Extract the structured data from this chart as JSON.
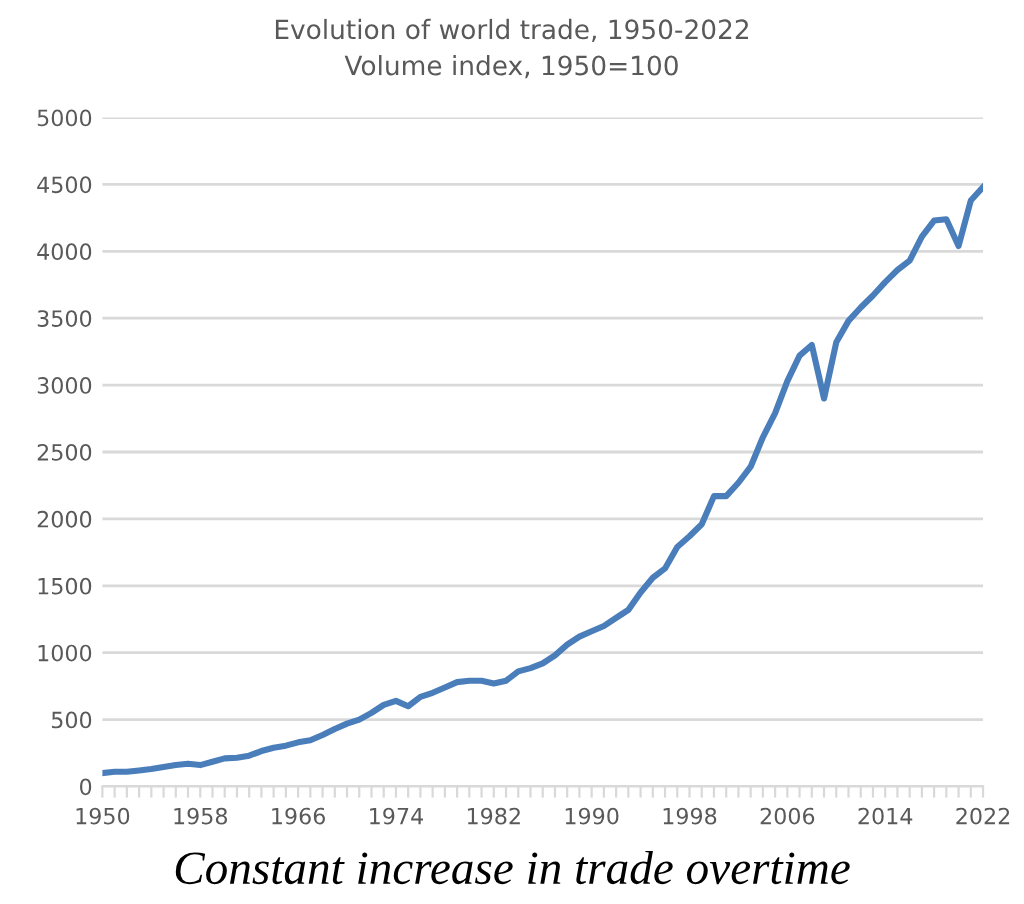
{
  "chart_data": {
    "type": "line",
    "title": "Evolution of world trade, 1950-2022",
    "subtitle": "Volume index, 1950=100",
    "annotations": [
      "Constant increase in trade overtime"
    ],
    "x": [
      1950,
      1951,
      1952,
      1953,
      1954,
      1955,
      1956,
      1957,
      1958,
      1959,
      1960,
      1961,
      1962,
      1963,
      1964,
      1965,
      1966,
      1967,
      1968,
      1969,
      1970,
      1971,
      1972,
      1973,
      1974,
      1975,
      1976,
      1977,
      1978,
      1979,
      1980,
      1981,
      1982,
      1983,
      1984,
      1985,
      1986,
      1987,
      1988,
      1989,
      1990,
      1991,
      1992,
      1993,
      1994,
      1995,
      1996,
      1997,
      1998,
      1999,
      2000,
      2001,
      2002,
      2003,
      2004,
      2005,
      2006,
      2007,
      2008,
      2009,
      2010,
      2011,
      2012,
      2013,
      2014,
      2015,
      2016,
      2017,
      2018,
      2019,
      2020,
      2021,
      2022
    ],
    "series": [
      {
        "color": "#4a7ebb",
        "values": [
          100,
          110,
          110,
          120,
          130,
          145,
          160,
          170,
          160,
          185,
          210,
          215,
          230,
          265,
          290,
          305,
          330,
          345,
          385,
          430,
          470,
          500,
          550,
          610,
          640,
          600,
          670,
          700,
          740,
          780,
          790,
          790,
          770,
          790,
          860,
          885,
          920,
          980,
          1060,
          1120,
          1160,
          1200,
          1260,
          1320,
          1450,
          1560,
          1630,
          1790,
          1870,
          1960,
          2170,
          2170,
          2270,
          2390,
          2610,
          2790,
          3030,
          3220,
          3300,
          2900,
          3320,
          3480,
          3580,
          3670,
          3770,
          3860,
          3930,
          4110,
          4230,
          4240,
          4040,
          4380,
          4480
        ]
      }
    ],
    "xlim": [
      1950,
      2022
    ],
    "xticks": [
      1950,
      {
        "value": 1951,
        "label": null
      },
      {
        "value": 1952,
        "label": null
      },
      {
        "value": 1953,
        "label": null
      },
      {
        "value": 1954,
        "label": null
      },
      {
        "value": 1955,
        "label": null
      },
      {
        "value": 1956,
        "label": null
      },
      {
        "value": 1957,
        "label": null
      },
      1958,
      {
        "value": 1959,
        "label": null
      },
      {
        "value": 1960,
        "label": null
      },
      {
        "value": 1961,
        "label": null
      },
      {
        "value": 1962,
        "label": null
      },
      {
        "value": 1963,
        "label": null
      },
      {
        "value": 1964,
        "label": null
      },
      {
        "value": 1965,
        "label": null
      },
      1966,
      {
        "value": 1967,
        "label": null
      },
      {
        "value": 1968,
        "label": null
      },
      {
        "value": 1969,
        "label": null
      },
      {
        "value": 1970,
        "label": null
      },
      {
        "value": 1971,
        "label": null
      },
      {
        "value": 1972,
        "label": null
      },
      {
        "value": 1973,
        "label": null
      },
      1974,
      {
        "value": 1975,
        "label": null
      },
      {
        "value": 1976,
        "label": null
      },
      {
        "value": 1977,
        "label": null
      },
      {
        "value": 1978,
        "label": null
      },
      {
        "value": 1979,
        "label": null
      },
      {
        "value": 1980,
        "label": null
      },
      {
        "value": 1981,
        "label": null
      },
      1982,
      {
        "value": 1983,
        "label": null
      },
      {
        "value": 1984,
        "label": null
      },
      {
        "value": 1985,
        "label": null
      },
      {
        "value": 1986,
        "label": null
      },
      {
        "value": 1987,
        "label": null
      },
      {
        "value": 1988,
        "label": null
      },
      {
        "value": 1989,
        "label": null
      },
      1990,
      {
        "value": 1991,
        "label": null
      },
      {
        "value": 1992,
        "label": null
      },
      {
        "value": 1993,
        "label": null
      },
      {
        "value": 1994,
        "label": null
      },
      {
        "value": 1995,
        "label": null
      },
      {
        "value": 1996,
        "label": null
      },
      {
        "value": 1997,
        "label": null
      },
      1998,
      {
        "value": 1999,
        "label": null
      },
      {
        "value": 2000,
        "label": null
      },
      {
        "value": 2001,
        "label": null
      },
      {
        "value": 2002,
        "label": null
      },
      {
        "value": 2003,
        "label": null
      },
      {
        "value": 2004,
        "label": null
      },
      {
        "value": 2005,
        "label": null
      },
      2006,
      {
        "value": 2007,
        "label": null
      },
      {
        "value": 2008,
        "label": null
      },
      {
        "value": 2009,
        "label": null
      },
      {
        "value": 2010,
        "label": null
      },
      {
        "value": 2011,
        "label": null
      },
      {
        "value": 2012,
        "label": null
      },
      {
        "value": 2013,
        "label": null
      },
      2014,
      {
        "value": 2015,
        "label": null
      },
      {
        "value": 2016,
        "label": null
      },
      {
        "value": 2017,
        "label": null
      },
      {
        "value": 2018,
        "label": null
      },
      {
        "value": 2019,
        "label": null
      },
      {
        "value": 2020,
        "label": null
      },
      {
        "value": 2021,
        "label": null
      },
      2022
    ],
    "ylim": [
      0,
      5000
    ],
    "yticks": [
      0,
      500,
      1000,
      1500,
      2000,
      2500,
      3000,
      3500,
      4000,
      4500,
      5000
    ],
    "grid": "y",
    "legend": false,
    "marker": "none",
    "line_style": "solid"
  }
}
